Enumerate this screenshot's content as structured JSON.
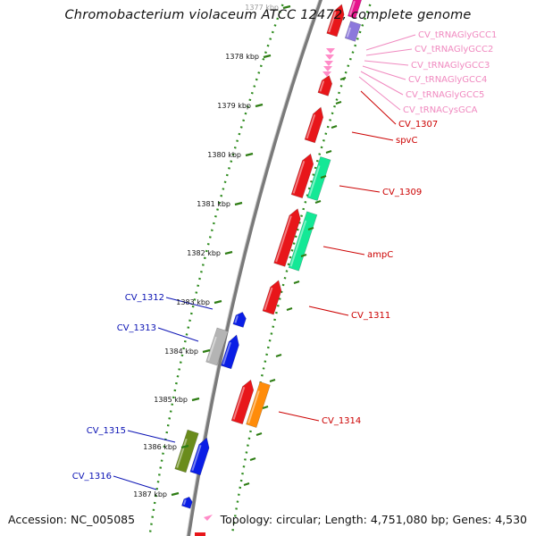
{
  "header": {
    "title": "Chromobacterium violaceum ATCC 12472, complete genome"
  },
  "footer": {
    "accession": "Accession: NC_005085",
    "topology": "Topology: circular; Length: 4,751,080 bp; Genes: 4,530"
  },
  "colors": {
    "backbone": "#7a7a7a",
    "tick_major": "#2e7d14",
    "tick_dots": "#2e8b1e",
    "cds_forward": "#e8161a",
    "cds_reverse_blue": "#0a1ee6",
    "hit_green": "#14e896",
    "hit_olive": "#6a8c1c",
    "hit_orange": "#ff8c0a",
    "hit_grey": "#b4b4b4",
    "trna": "#ff8cc8",
    "label_red": "#cc0000",
    "label_blue": "#0a12b4",
    "label_pink": "#f08ac0",
    "purple": "#8c78dc",
    "magenta": "#e6148c"
  },
  "diagram_data": {
    "type": "circular-genome-map-zoomed",
    "ruler_unit": "kbp",
    "ruler_ticks": [
      "1377 kbp",
      "1378 kbp",
      "1379 kbp",
      "1380 kbp",
      "1381 kbp",
      "1382 kbp",
      "1383 kbp",
      "1384 kbp",
      "1385 kbp",
      "1386 kbp",
      "1387 kbp"
    ],
    "forward_labels": [
      {
        "text": "CV_tRNAGlyGCC1",
        "kind": "trna"
      },
      {
        "text": "CV_tRNAGlyGCC2",
        "kind": "trna"
      },
      {
        "text": "CV_tRNAGlyGCC3",
        "kind": "trna"
      },
      {
        "text": "CV_tRNAGlyGCC4",
        "kind": "trna"
      },
      {
        "text": "CV_tRNAGlyGCC5",
        "kind": "trna"
      },
      {
        "text": "CV_tRNACysGCA",
        "kind": "trna"
      },
      {
        "text": "CV_1307",
        "kind": "cds"
      },
      {
        "text": "spvC",
        "kind": "cds"
      },
      {
        "text": "CV_1309",
        "kind": "cds"
      },
      {
        "text": "ampC",
        "kind": "cds"
      },
      {
        "text": "CV_1311",
        "kind": "cds"
      },
      {
        "text": "CV_1314",
        "kind": "cds"
      }
    ],
    "reverse_labels": [
      {
        "text": "CV_1312",
        "kind": "cds"
      },
      {
        "text": "CV_1313",
        "kind": "cds"
      },
      {
        "text": "CV_1315",
        "kind": "cds"
      },
      {
        "text": "CV_1316",
        "kind": "cds"
      }
    ]
  }
}
